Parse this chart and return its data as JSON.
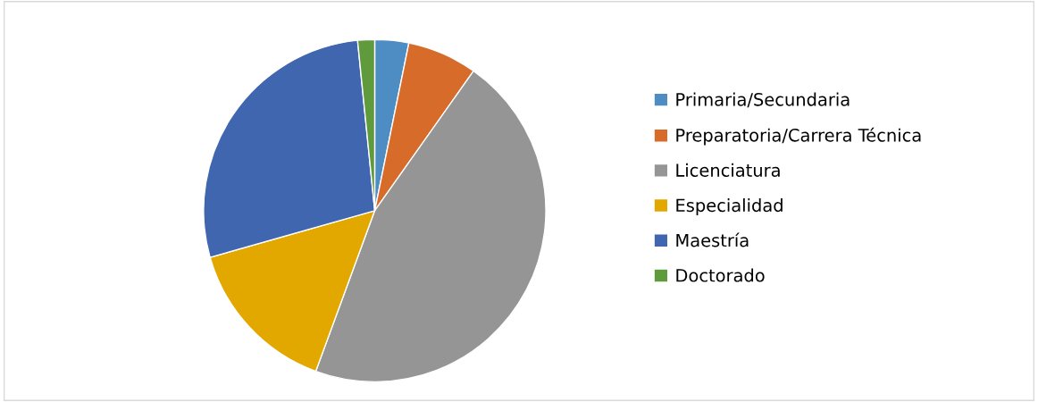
{
  "chart_data": {
    "type": "pie",
    "categories": [
      "Primaria/Secundaria",
      "Preparatoria/Carrera Técnica",
      "Licenciatura",
      "Especialidad",
      "Maestría",
      "Doctorado"
    ],
    "values": [
      3.2,
      6.6,
      45.8,
      15.0,
      27.8,
      1.6
    ],
    "colors": [
      "#4e8cc4",
      "#d66b2a",
      "#959595",
      "#e2a800",
      "#3f66ae",
      "#5f9b3d"
    ],
    "legend": "right"
  }
}
